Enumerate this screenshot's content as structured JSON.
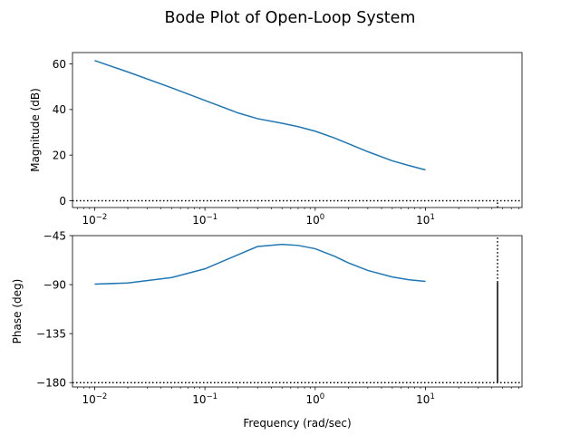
{
  "figure": {
    "title": "Bode Plot of Open-Loop System"
  },
  "chart_data": [
    {
      "type": "line",
      "xscale": "log",
      "xlim": [
        0.0063,
        75
      ],
      "ylim": [
        -3,
        65
      ],
      "grid": false,
      "xlabel": "",
      "ylabel": "Magnitude (dB)",
      "xticks": [
        0.01,
        0.1,
        1,
        10
      ],
      "xtick_labels": [
        [
          "10",
          "−2"
        ],
        [
          "10",
          "−1"
        ],
        [
          "10",
          "0"
        ],
        [
          "10",
          "1"
        ]
      ],
      "yticks": [
        0,
        20,
        40,
        60
      ],
      "ytick_labels": [
        "0",
        "20",
        "40",
        "60"
      ],
      "series": [
        {
          "color": "#1f77b4",
          "x": [
            0.01,
            0.02,
            0.05,
            0.1,
            0.2,
            0.3,
            0.5,
            0.7,
            1,
            1.5,
            2,
            3,
            5,
            7,
            10
          ],
          "y": [
            61.5,
            56.5,
            49.5,
            44.0,
            38.5,
            36.0,
            34.0,
            32.5,
            30.5,
            27.5,
            25.0,
            21.5,
            17.5,
            15.5,
            13.5
          ]
        }
      ],
      "reference_lines": [
        {
          "orientation": "horizontal",
          "value": 0,
          "style": "dotted",
          "color": "#000000"
        },
        {
          "orientation": "vertical",
          "value": 45,
          "from": -3,
          "to": 0,
          "style": "dotted",
          "color": "#000000"
        }
      ]
    },
    {
      "type": "line",
      "xscale": "log",
      "xlim": [
        0.0063,
        75
      ],
      "ylim": [
        -184,
        -45
      ],
      "grid": false,
      "xlabel": "Frequency (rad/sec)",
      "ylabel": "Phase (deg)",
      "xticks": [
        0.01,
        0.1,
        1,
        10
      ],
      "xtick_labels": [
        [
          "10",
          "−2"
        ],
        [
          "10",
          "−1"
        ],
        [
          "10",
          "0"
        ],
        [
          "10",
          "1"
        ]
      ],
      "yticks": [
        -45,
        -90,
        -135,
        -180
      ],
      "ytick_labels": [
        "−45",
        "−90",
        "−135",
        "−180"
      ],
      "series": [
        {
          "color": "#1f77b4",
          "x": [
            0.01,
            0.02,
            0.05,
            0.1,
            0.2,
            0.3,
            0.5,
            0.7,
            1,
            1.5,
            2,
            3,
            5,
            7,
            10
          ],
          "y": [
            -89.5,
            -88.5,
            -83.5,
            -75.5,
            -62.5,
            -55.0,
            -53.0,
            -54.0,
            -57.0,
            -64.0,
            -70.0,
            -77.0,
            -83.0,
            -85.5,
            -87.0
          ]
        }
      ],
      "reference_lines": [
        {
          "orientation": "horizontal",
          "value": -180,
          "style": "dotted",
          "color": "#000000"
        },
        {
          "orientation": "vertical",
          "value": 45,
          "from": -88,
          "to": -45,
          "style": "dotted",
          "color": "#000000"
        },
        {
          "orientation": "vertical",
          "value": 45,
          "from": -180,
          "to": -88,
          "style": "solid",
          "color": "#000000"
        }
      ]
    }
  ]
}
